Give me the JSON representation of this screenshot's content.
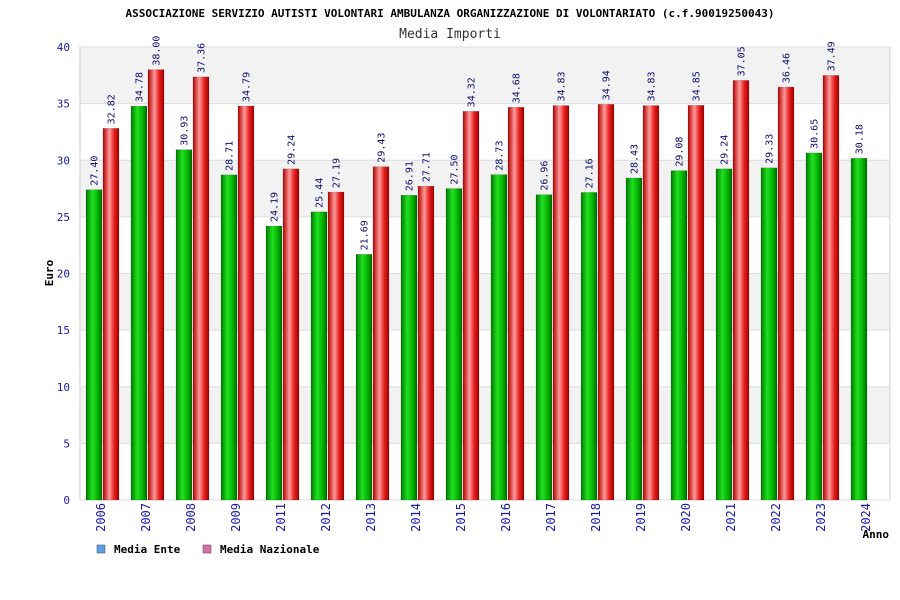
{
  "chart_data": {
    "type": "bar",
    "title": "ASSOCIAZIONE SERVIZIO AUTISTI VOLONTARI AMBULANZA ORGANIZZAZIONE DI VOLONTARIATO (c.f.90019250043)",
    "subtitle": "Media Importi",
    "xlabel": "Anno",
    "ylabel": "Euro",
    "ylim": [
      0,
      40
    ],
    "yticks": [
      0,
      5,
      10,
      15,
      20,
      25,
      30,
      35,
      40
    ],
    "grid": true,
    "legend_position": "bottom-left",
    "categories": [
      "2006",
      "2007",
      "2008",
      "2009",
      "2011",
      "2012",
      "2013",
      "2014",
      "2015",
      "2016",
      "2017",
      "2018",
      "2019",
      "2020",
      "2021",
      "2022",
      "2023",
      "2024"
    ],
    "series": [
      {
        "name": "Media Ente",
        "color": "#00b000",
        "legend_color": "#5aa0e6",
        "values": [
          27.4,
          34.78,
          30.93,
          28.71,
          24.19,
          25.44,
          21.69,
          26.91,
          27.5,
          28.73,
          26.96,
          27.16,
          28.43,
          29.08,
          29.24,
          29.33,
          30.65,
          30.18
        ],
        "labels": [
          "27.40",
          "34.78",
          "30.93",
          "28.71",
          "24.19",
          "25.44",
          "21.69",
          "26.91",
          "27.50",
          "28.73",
          "26.96",
          "27.16",
          "28.43",
          "29.08",
          "29.24",
          "29.33",
          "30.65",
          "30.18"
        ]
      },
      {
        "name": "Media Nazionale",
        "color": "#e01a1a",
        "legend_color": "#d870a8",
        "values": [
          32.82,
          38.0,
          37.36,
          34.79,
          29.24,
          27.19,
          29.43,
          27.71,
          34.32,
          34.68,
          34.83,
          34.94,
          34.83,
          34.85,
          37.05,
          36.46,
          37.49,
          null
        ],
        "labels": [
          "32.82",
          "38.00",
          "37.36",
          "34.79",
          "29.24",
          "27.19",
          "29.43",
          "27.71",
          "34.32",
          "34.68",
          "34.83",
          "34.94",
          "34.83",
          "34.85",
          "37.05",
          "36.46",
          "37.49",
          ""
        ]
      }
    ]
  }
}
